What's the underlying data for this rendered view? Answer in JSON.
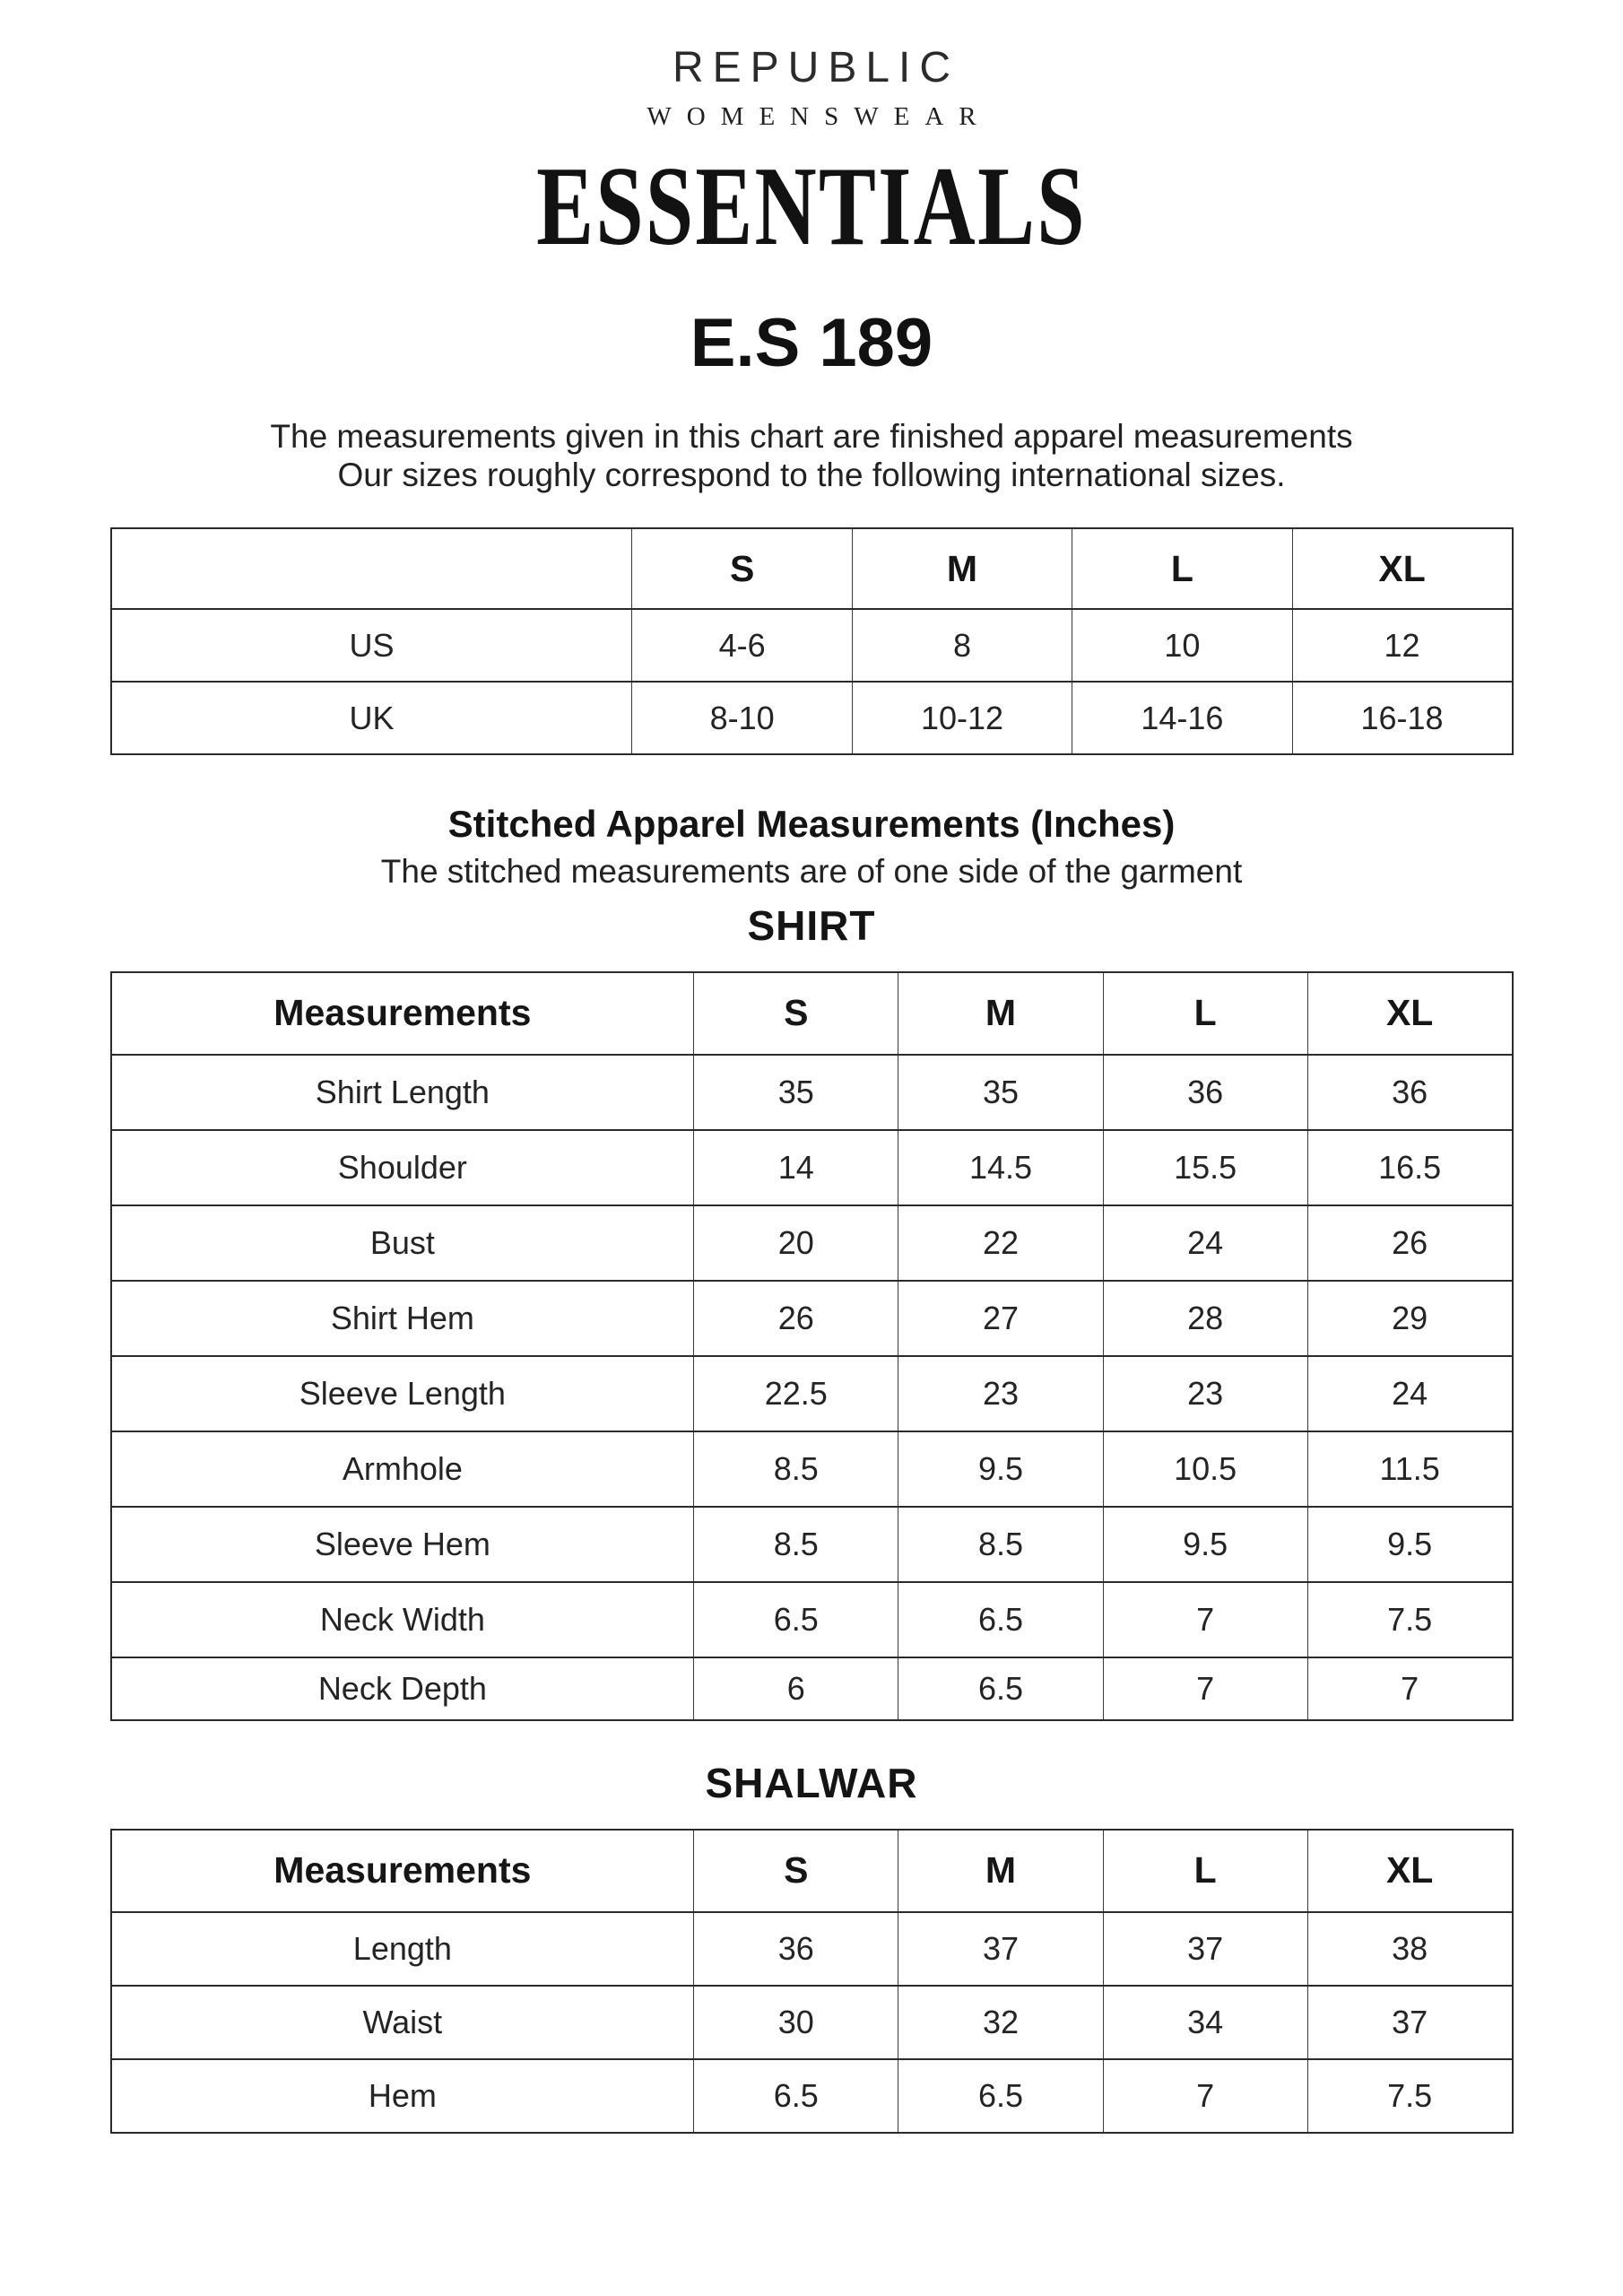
{
  "brand": {
    "name": "REPUBLIC",
    "subname": "WOMENSWEAR",
    "collection": "ESSENTIALS"
  },
  "product_code": "E.S 189",
  "intro": {
    "line1": "The measurements given in this chart are finished apparel measurements",
    "line2": "Our sizes roughly correspond to the following international sizes."
  },
  "international_table": {
    "headers": [
      "",
      "S",
      "M",
      "L",
      "XL"
    ],
    "rows": [
      {
        "label": "US",
        "values": [
          "4-6",
          "8",
          "10",
          "12"
        ]
      },
      {
        "label": "UK",
        "values": [
          "8-10",
          "10-12",
          "14-16",
          "16-18"
        ]
      }
    ]
  },
  "stitched_section": {
    "title": "Stitched Apparel Measurements (Inches)",
    "subtitle": "The stitched measurements are of one side of the garment"
  },
  "shirt_table": {
    "title": "SHIRT",
    "headers": [
      "Measurements",
      "S",
      "M",
      "L",
      "XL"
    ],
    "rows": [
      {
        "label": "Shirt Length",
        "values": [
          "35",
          "35",
          "36",
          "36"
        ]
      },
      {
        "label": "Shoulder",
        "values": [
          "14",
          "14.5",
          "15.5",
          "16.5"
        ]
      },
      {
        "label": "Bust",
        "values": [
          "20",
          "22",
          "24",
          "26"
        ]
      },
      {
        "label": "Shirt Hem",
        "values": [
          "26",
          "27",
          "28",
          "29"
        ]
      },
      {
        "label": "Sleeve Length",
        "values": [
          "22.5",
          "23",
          "23",
          "24"
        ]
      },
      {
        "label": "Armhole",
        "values": [
          "8.5",
          "9.5",
          "10.5",
          "11.5"
        ]
      },
      {
        "label": "Sleeve Hem",
        "values": [
          "8.5",
          "8.5",
          "9.5",
          "9.5"
        ]
      },
      {
        "label": "Neck Width",
        "values": [
          "6.5",
          "6.5",
          "7",
          "7.5"
        ]
      },
      {
        "label": "Neck Depth",
        "values": [
          "6",
          "6.5",
          "7",
          "7"
        ]
      }
    ]
  },
  "shalwar_table": {
    "title": "SHALWAR",
    "headers": [
      "Measurements",
      "S",
      "M",
      "L",
      "XL"
    ],
    "rows": [
      {
        "label": "Length",
        "values": [
          "36",
          "37",
          "37",
          "38"
        ]
      },
      {
        "label": "Waist",
        "values": [
          "30",
          "32",
          "34",
          "37"
        ]
      },
      {
        "label": "Hem",
        "values": [
          "6.5",
          "6.5",
          "7",
          "7.5"
        ]
      }
    ]
  }
}
